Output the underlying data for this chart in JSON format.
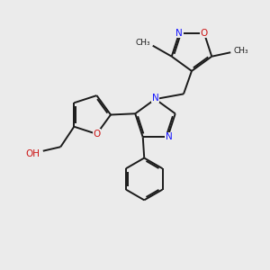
{
  "bg_color": "#ebebeb",
  "bond_color": "#1a1a1a",
  "N_color": "#1414ff",
  "O_color": "#cc1414",
  "font_size": 7.5,
  "bond_width": 1.4,
  "dbo": 0.06,
  "figsize": [
    3.0,
    3.0
  ],
  "dpi": 100,
  "xlim": [
    0,
    10
  ],
  "ylim": [
    0,
    10
  ]
}
